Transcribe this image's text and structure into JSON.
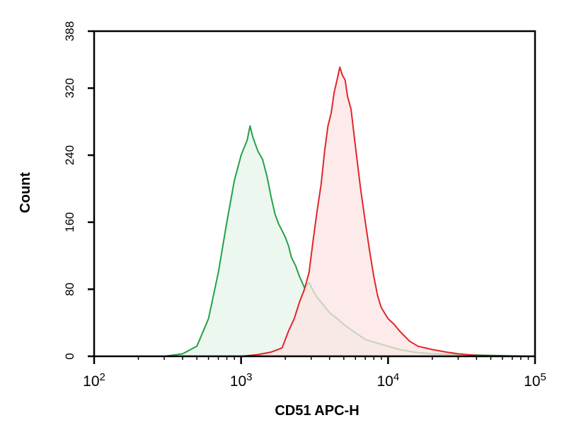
{
  "chart_data": {
    "type": "area",
    "xlabel": "CD51 APC-H",
    "ylabel": "Count",
    "x_scale": "log",
    "xlim": [
      100,
      100000
    ],
    "ylim": [
      0,
      388
    ],
    "x_ticks": [
      {
        "base": "10",
        "exp": "2",
        "value": 100
      },
      {
        "base": "10",
        "exp": "3",
        "value": 1000
      },
      {
        "base": "10",
        "exp": "4",
        "value": 10000
      },
      {
        "base": "10",
        "exp": "5",
        "value": 100000
      }
    ],
    "y_ticks": [
      {
        "label": "0",
        "value": 0
      },
      {
        "label": "80",
        "value": 80
      },
      {
        "label": "160",
        "value": 160
      },
      {
        "label": "240",
        "value": 240
      },
      {
        "label": "320",
        "value": 320
      },
      {
        "label": "388",
        "value": 388
      }
    ],
    "grid": false,
    "series": [
      {
        "color": "#21a24a",
        "fill": "#e6f4e9",
        "points": [
          [
            300,
            0
          ],
          [
            400,
            3
          ],
          [
            500,
            12
          ],
          [
            600,
            45
          ],
          [
            700,
            100
          ],
          [
            800,
            160
          ],
          [
            900,
            210
          ],
          [
            1000,
            240
          ],
          [
            1100,
            258
          ],
          [
            1150,
            275
          ],
          [
            1200,
            262
          ],
          [
            1300,
            245
          ],
          [
            1400,
            235
          ],
          [
            1500,
            215
          ],
          [
            1600,
            190
          ],
          [
            1700,
            170
          ],
          [
            1800,
            158
          ],
          [
            1900,
            150
          ],
          [
            2000,
            142
          ],
          [
            2100,
            132
          ],
          [
            2200,
            118
          ],
          [
            2350,
            108
          ],
          [
            2500,
            95
          ],
          [
            2700,
            82
          ],
          [
            2900,
            88
          ],
          [
            3100,
            78
          ],
          [
            3300,
            70
          ],
          [
            3600,
            62
          ],
          [
            4000,
            52
          ],
          [
            4500,
            45
          ],
          [
            5000,
            38
          ],
          [
            6000,
            28
          ],
          [
            7000,
            20
          ],
          [
            8000,
            17
          ],
          [
            10000,
            12
          ],
          [
            12000,
            8
          ],
          [
            15000,
            5
          ],
          [
            20000,
            3
          ],
          [
            30000,
            2
          ],
          [
            50000,
            1
          ],
          [
            90000,
            0
          ]
        ]
      },
      {
        "color": "#e0262a",
        "fill": "#fce3e3",
        "points": [
          [
            1000,
            0
          ],
          [
            1300,
            2
          ],
          [
            1600,
            5
          ],
          [
            1900,
            10
          ],
          [
            2100,
            30
          ],
          [
            2300,
            45
          ],
          [
            2500,
            65
          ],
          [
            2700,
            80
          ],
          [
            2900,
            100
          ],
          [
            3100,
            140
          ],
          [
            3300,
            175
          ],
          [
            3500,
            205
          ],
          [
            3700,
            245
          ],
          [
            3900,
            275
          ],
          [
            4100,
            290
          ],
          [
            4300,
            315
          ],
          [
            4500,
            330
          ],
          [
            4700,
            345
          ],
          [
            4900,
            335
          ],
          [
            5100,
            330
          ],
          [
            5300,
            310
          ],
          [
            5600,
            295
          ],
          [
            6000,
            250
          ],
          [
            6500,
            200
          ],
          [
            7000,
            160
          ],
          [
            7500,
            125
          ],
          [
            8000,
            95
          ],
          [
            8500,
            72
          ],
          [
            9000,
            58
          ],
          [
            10000,
            45
          ],
          [
            11000,
            38
          ],
          [
            12000,
            30
          ],
          [
            14000,
            18
          ],
          [
            16000,
            12
          ],
          [
            20000,
            8
          ],
          [
            25000,
            5
          ],
          [
            30000,
            3
          ],
          [
            40000,
            1
          ],
          [
            60000,
            0
          ]
        ]
      }
    ]
  }
}
